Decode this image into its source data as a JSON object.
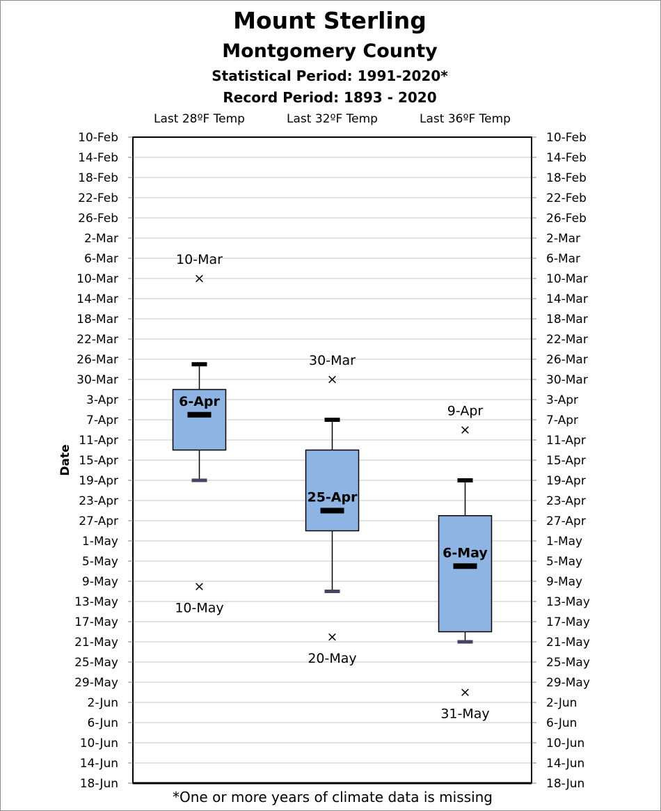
{
  "title": "Mount Sterling",
  "subtitle": "Montgomery County",
  "statistical_period": "Statistical Period: 1991-2020*",
  "record_period": "Record Period: 1893 - 2020",
  "footnote": "*One or more years of climate data is missing",
  "colors": {
    "box_fill": "#8eb4e3",
    "grid": "#d9d9d9",
    "axis": "#000000"
  },
  "chart_data": {
    "type": "box",
    "ylabel": "Date",
    "y_axis_reversed": true,
    "grid": true,
    "ylim": [
      "10-Feb",
      "18-Jun"
    ],
    "y_ticks": [
      "10-Feb",
      "14-Feb",
      "18-Feb",
      "22-Feb",
      "26-Feb",
      "2-Mar",
      "6-Mar",
      "10-Mar",
      "14-Mar",
      "18-Mar",
      "22-Mar",
      "26-Mar",
      "30-Mar",
      "3-Apr",
      "7-Apr",
      "11-Apr",
      "15-Apr",
      "19-Apr",
      "23-Apr",
      "27-Apr",
      "1-May",
      "5-May",
      "9-May",
      "13-May",
      "17-May",
      "21-May",
      "25-May",
      "29-May",
      "2-Jun",
      "6-Jun",
      "10-Jun",
      "14-Jun",
      "18-Jun"
    ],
    "categories": [
      "Last 28ºF Temp",
      "Last 32ºF Temp",
      "Last 36ºF Temp"
    ],
    "boxes": [
      {
        "category": "Last 28ºF Temp",
        "record_earliest": "10-Mar",
        "whisker_low": "27-Mar",
        "q1": "1-Apr",
        "median": "6-Apr",
        "q3": "13-Apr",
        "whisker_high": "19-Apr",
        "record_latest": "10-May"
      },
      {
        "category": "Last 32ºF Temp",
        "record_earliest": "30-Mar",
        "whisker_low": "7-Apr",
        "q1": "13-Apr",
        "median": "25-Apr",
        "q3": "29-Apr",
        "whisker_high": "11-May",
        "record_latest": "20-May"
      },
      {
        "category": "Last 36ºF Temp",
        "record_earliest": "9-Apr",
        "whisker_low": "19-Apr",
        "q1": "26-Apr",
        "median": "6-May",
        "q3": "19-May",
        "whisker_high": "21-May",
        "record_latest": "31-May"
      }
    ]
  }
}
